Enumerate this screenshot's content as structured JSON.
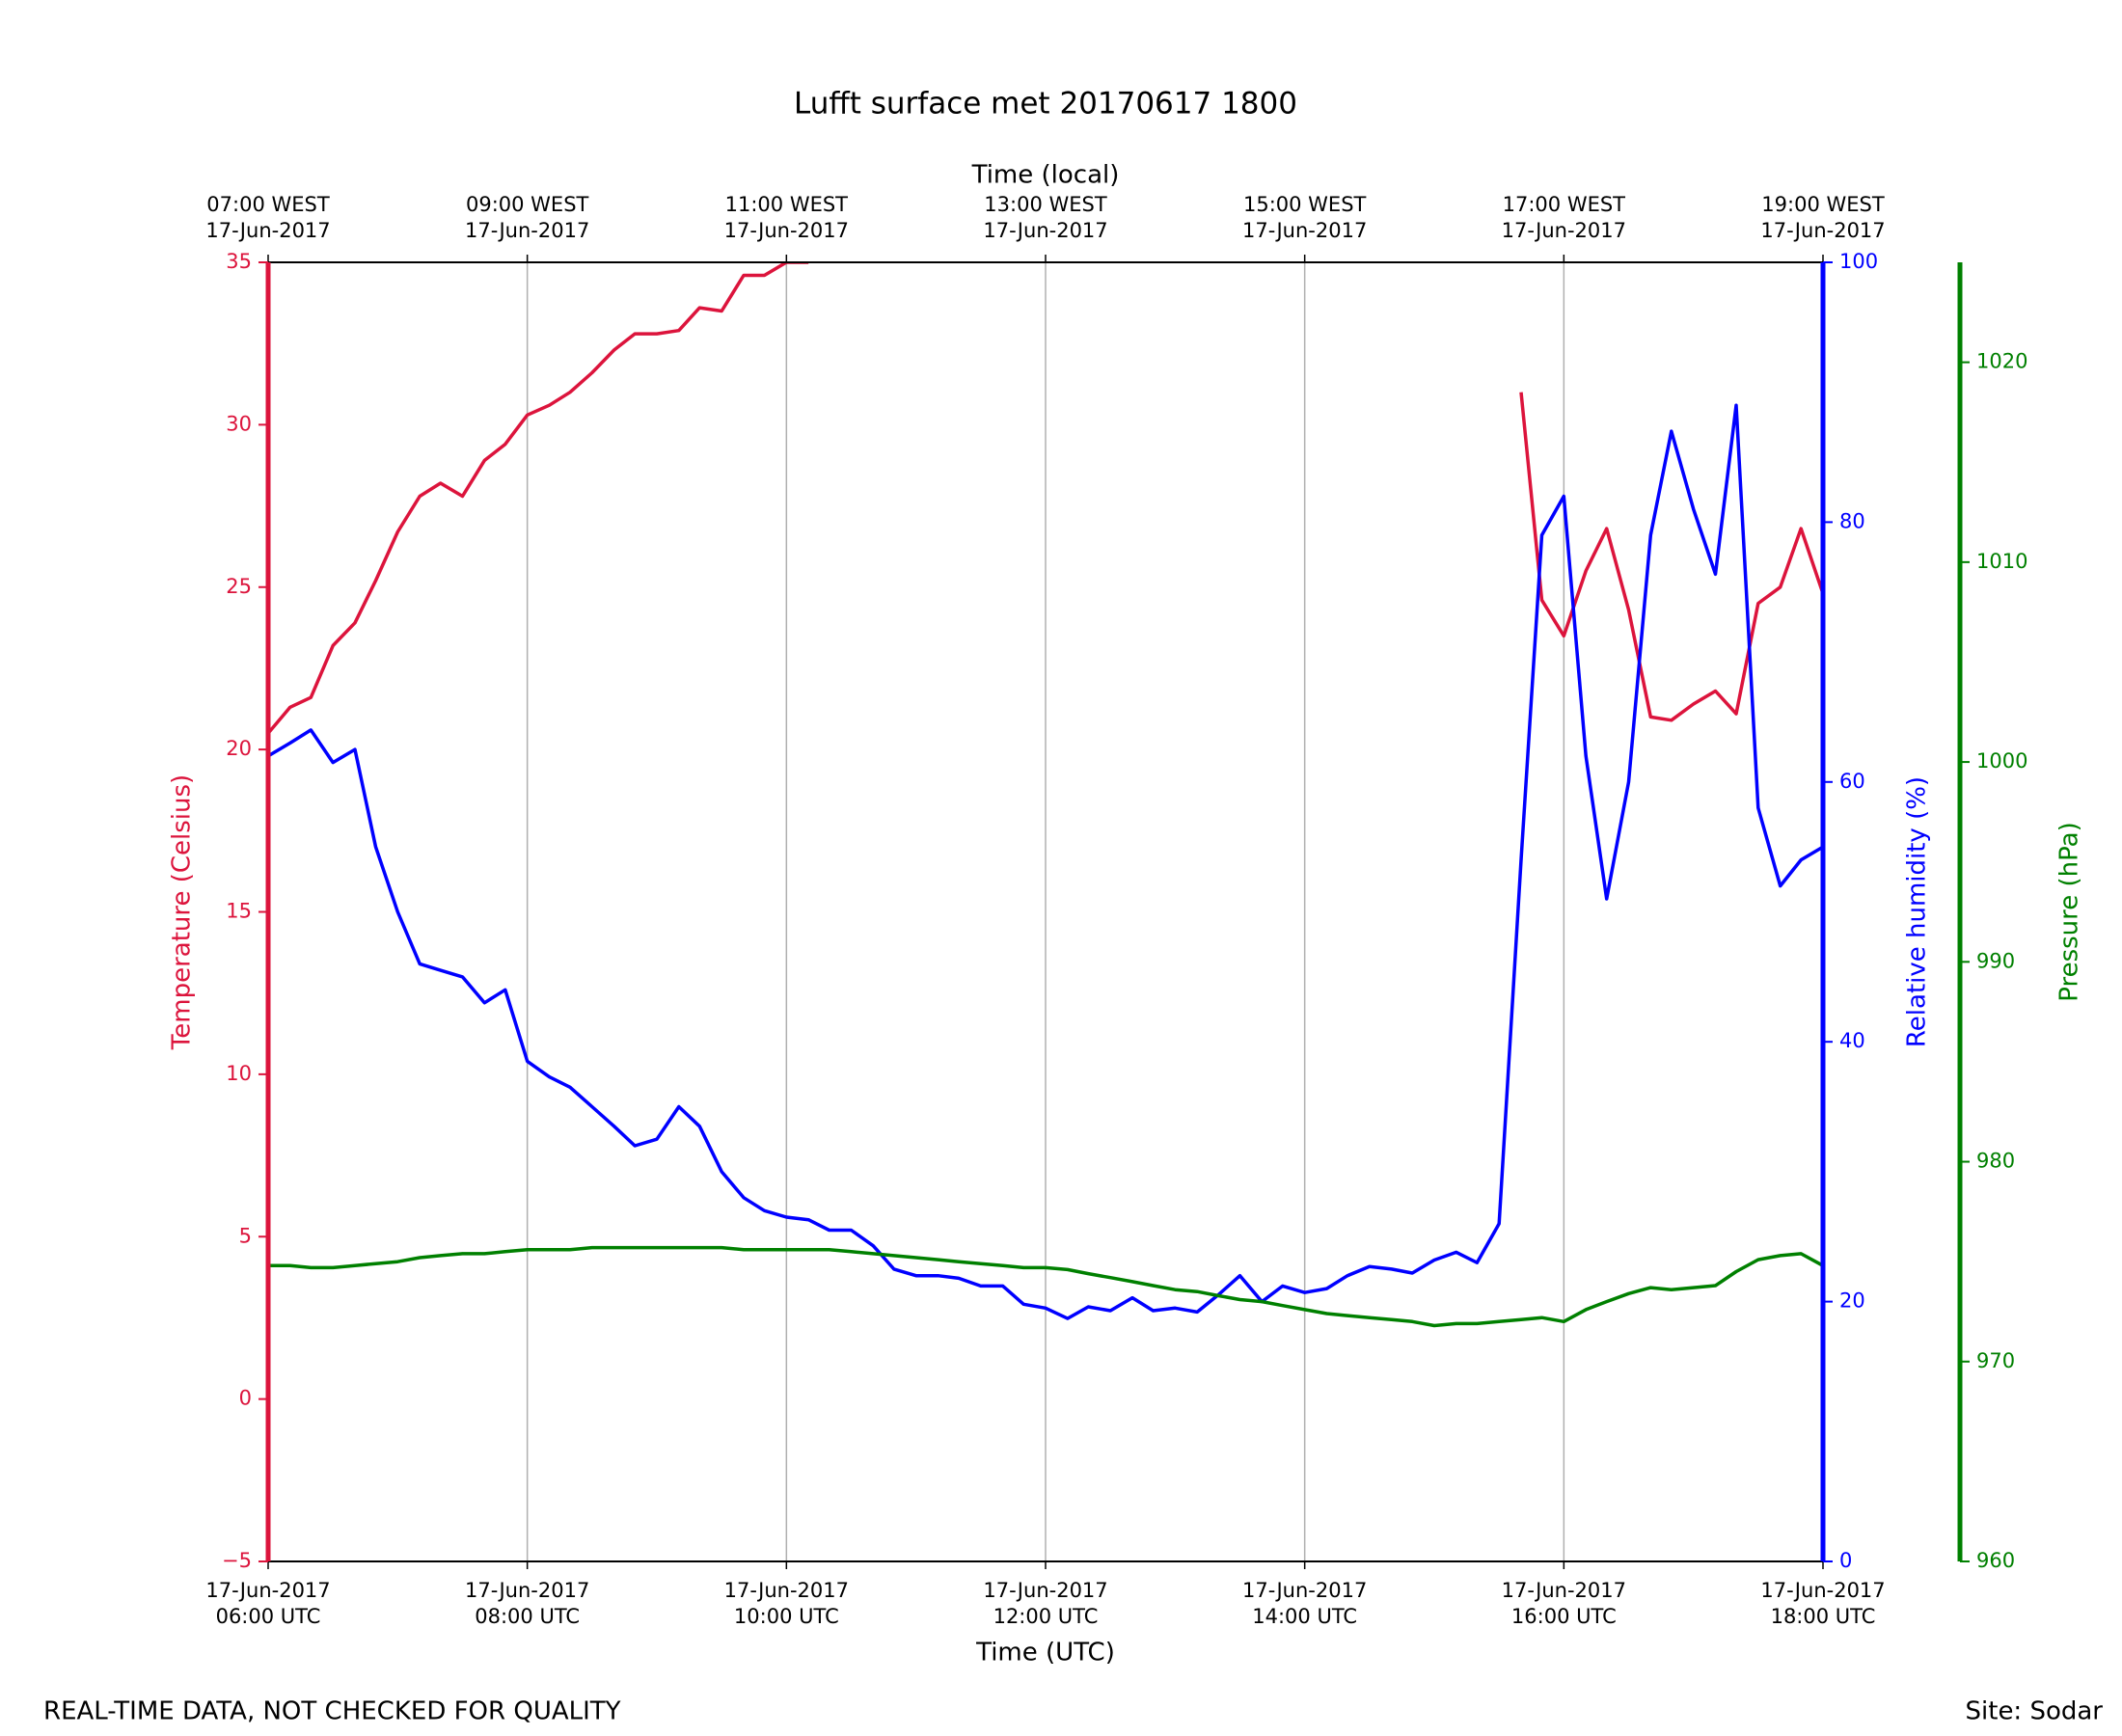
{
  "chart_data": {
    "type": "line",
    "title": "Lufft surface met 20170617 1800",
    "xlabel": "Time (UTC)",
    "x2label": "Time (local)",
    "ylabel": "Temperature (Celsius)",
    "y2label": "Relative humidity (%)",
    "y3label": "Pressure (hPa)",
    "annotations": [
      "REAL-TIME DATA, NOT CHECKED FOR QUALITY",
      "Site: Sodar"
    ],
    "grid": "x",
    "xlim": [
      6,
      18
    ],
    "xticks": [
      {
        "value": 6,
        "label": "17-Jun-2017\n06:00 UTC"
      },
      {
        "value": 8,
        "label": "17-Jun-2017\n08:00 UTC"
      },
      {
        "value": 10,
        "label": "17-Jun-2017\n10:00 UTC"
      },
      {
        "value": 12,
        "label": "17-Jun-2017\n12:00 UTC"
      },
      {
        "value": 14,
        "label": "17-Jun-2017\n14:00 UTC"
      },
      {
        "value": 16,
        "label": "17-Jun-2017\n16:00 UTC"
      },
      {
        "value": 18,
        "label": "17-Jun-2017\n18:00 UTC"
      }
    ],
    "x2ticks": [
      {
        "value": 6,
        "label": "07:00 WEST\n17-Jun-2017"
      },
      {
        "value": 8,
        "label": "09:00 WEST\n17-Jun-2017"
      },
      {
        "value": 10,
        "label": "11:00 WEST\n17-Jun-2017"
      },
      {
        "value": 12,
        "label": "13:00 WEST\n17-Jun-2017"
      },
      {
        "value": 14,
        "label": "15:00 WEST\n17-Jun-2017"
      },
      {
        "value": 16,
        "label": "17:00 WEST\n17-Jun-2017"
      },
      {
        "value": 18,
        "label": "19:00 WEST\n17-Jun-2017"
      }
    ],
    "ylim": [
      -5,
      35
    ],
    "yticks": [
      {
        "value": -5,
        "label": "−5"
      },
      0,
      5,
      10,
      15,
      20,
      25,
      30,
      35
    ],
    "y2lim": [
      0,
      100
    ],
    "y2ticks": [
      0,
      20,
      40,
      60,
      80,
      100
    ],
    "y3lim": [
      960,
      1025
    ],
    "y3ticks": [
      960,
      970,
      980,
      990,
      1000,
      1010,
      1020
    ],
    "x": [
      6,
      6.17,
      6.33,
      6.5,
      6.67,
      6.83,
      7,
      7.17,
      7.33,
      7.5,
      7.67,
      7.83,
      8,
      8.17,
      8.33,
      8.5,
      8.67,
      8.83,
      9,
      9.17,
      9.33,
      9.5,
      9.67,
      9.83,
      10,
      10.17,
      10.33,
      10.5,
      10.67,
      10.83,
      11,
      11.17,
      11.33,
      11.5,
      11.67,
      11.83,
      12,
      12.17,
      12.33,
      12.5,
      12.67,
      12.83,
      13,
      13.17,
      13.33,
      13.5,
      13.67,
      13.83,
      14,
      14.17,
      14.33,
      14.5,
      14.67,
      14.83,
      15,
      15.17,
      15.33,
      15.5,
      15.67,
      15.83,
      16,
      16.17,
      16.33,
      16.5,
      16.67,
      16.83,
      17,
      17.17,
      17.33,
      17.5,
      17.67,
      17.83,
      18
    ],
    "series": [
      {
        "color": "#dc143c",
        "axis": "y",
        "values": [
          20.5,
          21.3,
          21.6,
          23.2,
          23.9,
          25.2,
          26.7,
          27.8,
          28.2,
          27.8,
          28.9,
          29.4,
          30.3,
          30.6,
          31.0,
          31.6,
          32.3,
          32.8,
          32.8,
          32.9,
          33.6,
          33.5,
          34.6,
          34.6,
          35.0,
          35.0,
          null,
          null,
          null,
          null,
          null,
          null,
          null,
          null,
          null,
          null,
          null,
          null,
          null,
          null,
          null,
          null,
          null,
          null,
          null,
          null,
          null,
          null,
          null,
          null,
          null,
          null,
          null,
          null,
          null,
          null,
          null,
          null,
          31.0,
          24.6,
          23.5,
          25.5,
          26.8,
          24.3,
          21.0,
          20.9,
          21.4,
          21.8,
          21.1,
          24.5,
          25.0,
          26.8,
          24.8
        ]
      },
      {
        "color": "#0000ff",
        "axis": "y2",
        "values": [
          62,
          63,
          64,
          61.5,
          62.5,
          55,
          50,
          46,
          45.5,
          45,
          43,
          44,
          38.5,
          37.3,
          36.5,
          35,
          33.5,
          32,
          32.5,
          35,
          33.5,
          30,
          28,
          27,
          26.5,
          26.3,
          25.5,
          25.5,
          24.3,
          22.5,
          22,
          22,
          21.8,
          21.2,
          21.2,
          19.8,
          19.5,
          18.7,
          19.6,
          19.3,
          20.3,
          19.3,
          19.5,
          19.2,
          20.5,
          22,
          20,
          21.2,
          20.7,
          21,
          22,
          22.7,
          22.5,
          22.2,
          23.2,
          23.8,
          23,
          26,
          54,
          79,
          82,
          62,
          51,
          60,
          79,
          87,
          81,
          76,
          89,
          58,
          52,
          54,
          55
        ]
      },
      {
        "color": "#008000",
        "axis": "y3",
        "values": [
          974.8,
          974.8,
          974.7,
          974.7,
          974.8,
          974.9,
          975.0,
          975.2,
          975.3,
          975.4,
          975.4,
          975.5,
          975.6,
          975.6,
          975.6,
          975.7,
          975.7,
          975.7,
          975.7,
          975.7,
          975.7,
          975.7,
          975.6,
          975.6,
          975.6,
          975.6,
          975.6,
          975.5,
          975.4,
          975.3,
          975.2,
          975.1,
          975.0,
          974.9,
          974.8,
          974.7,
          974.7,
          974.6,
          974.4,
          974.2,
          974.0,
          973.8,
          973.6,
          973.5,
          973.3,
          973.1,
          973.0,
          972.8,
          972.6,
          972.4,
          972.3,
          972.2,
          972.1,
          972.0,
          971.8,
          971.9,
          971.9,
          972.0,
          972.1,
          972.2,
          972.0,
          972.6,
          973.0,
          973.4,
          973.7,
          973.6,
          973.7,
          973.8,
          974.5,
          975.1,
          975.3,
          975.4,
          974.8
        ]
      }
    ]
  }
}
